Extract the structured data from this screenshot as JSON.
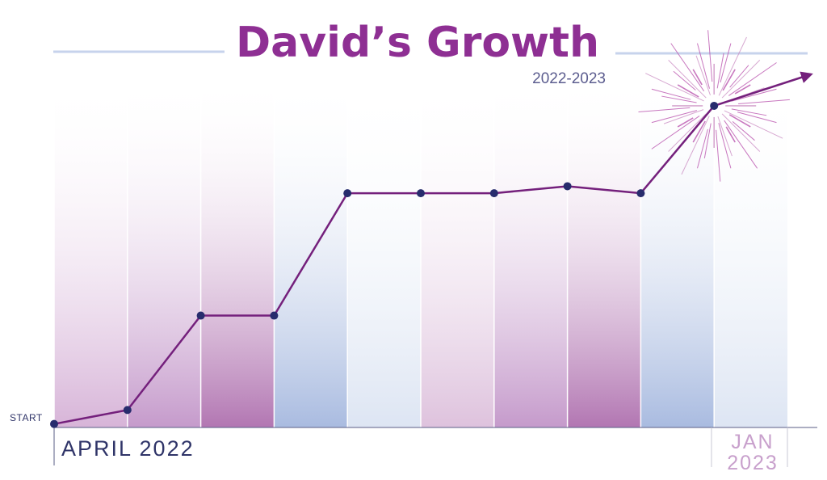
{
  "chart_data": {
    "type": "line",
    "title": "David’s Growth",
    "subtitle": "2022-2023",
    "x_start_label": "APRIL 2022",
    "x_end_label_line1": "JAN",
    "x_end_label_line2": "2023",
    "y_start_label": "START",
    "points": [
      {
        "x": 0,
        "y": 0
      },
      {
        "x": 1,
        "y": 4
      },
      {
        "x": 2,
        "y": 31
      },
      {
        "x": 3,
        "y": 31
      },
      {
        "x": 4,
        "y": 66
      },
      {
        "x": 5,
        "y": 66
      },
      {
        "x": 6,
        "y": 66
      },
      {
        "x": 7,
        "y": 68
      },
      {
        "x": 8,
        "y": 66
      },
      {
        "x": 9,
        "y": 91
      }
    ],
    "ylim": [
      -1,
      100
    ],
    "xlim": [
      0,
      10
    ],
    "grid": true,
    "colors": {
      "title": "#8e2f93",
      "line": "#74207c",
      "marker": "#272c6d",
      "axis": "#2f3468",
      "subtitle": "#5c5d8f",
      "purple_band": "#b278b3",
      "blue_band": "#a8b9df",
      "pink_band": "#e0c3de",
      "light_band": "#dfe6f4",
      "burst": "#b64aa9"
    }
  }
}
